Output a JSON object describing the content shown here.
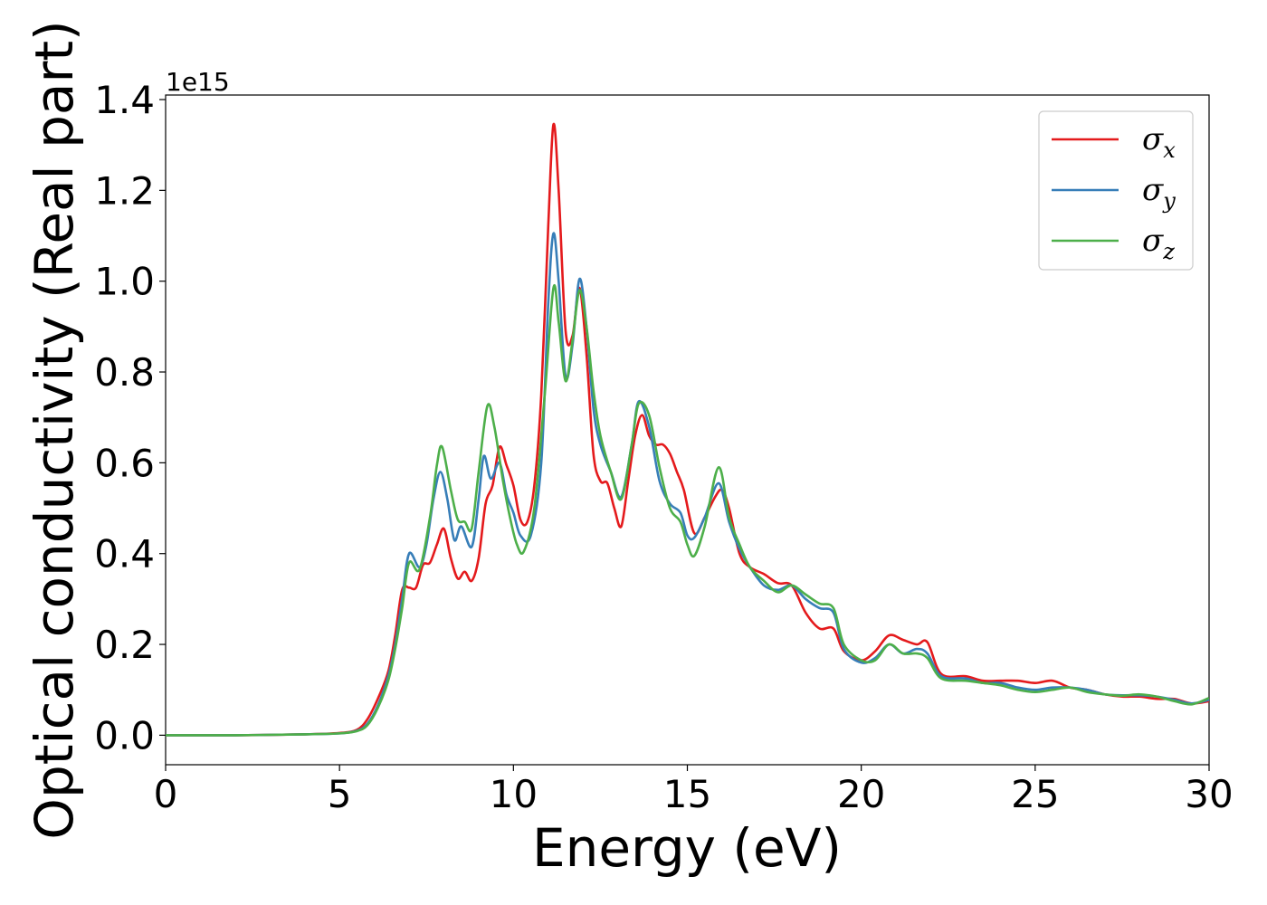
{
  "chart_data": {
    "type": "line",
    "title": "",
    "xlabel": "Energy (eV)",
    "ylabel": "Optical conductivity (Real part)",
    "y_offset_text": "1e15",
    "xlim": [
      0,
      30
    ],
    "ylim": [
      -0.065,
      1.41
    ],
    "x_ticks": [
      0,
      5,
      10,
      15,
      20,
      25,
      30
    ],
    "y_ticks": [
      0.0,
      0.2,
      0.4,
      0.6,
      0.8,
      1.0,
      1.2,
      1.4
    ],
    "x_tick_labels": [
      "0",
      "5",
      "10",
      "15",
      "20",
      "25",
      "30"
    ],
    "y_tick_labels": [
      "0.0",
      "0.2",
      "0.4",
      "0.6",
      "0.8",
      "1.0",
      "1.2",
      "1.4"
    ],
    "grid": false,
    "legend": {
      "position": "top-right",
      "entries": [
        {
          "symbol": "σ",
          "sub": "x",
          "color": "#e41a1c"
        },
        {
          "symbol": "σ",
          "sub": "y",
          "color": "#377eb8"
        },
        {
          "symbol": "σ",
          "sub": "z",
          "color": "#4daf4a"
        }
      ]
    },
    "series": [
      {
        "color": "#e41a1c",
        "points": [
          [
            0,
            0
          ],
          [
            2,
            0
          ],
          [
            4,
            0.002
          ],
          [
            5,
            0.005
          ],
          [
            5.5,
            0.012
          ],
          [
            5.8,
            0.035
          ],
          [
            6.1,
            0.08
          ],
          [
            6.4,
            0.14
          ],
          [
            6.6,
            0.22
          ],
          [
            6.8,
            0.32
          ],
          [
            7.0,
            0.325
          ],
          [
            7.2,
            0.325
          ],
          [
            7.4,
            0.375
          ],
          [
            7.6,
            0.38
          ],
          [
            7.8,
            0.42
          ],
          [
            8.0,
            0.455
          ],
          [
            8.2,
            0.39
          ],
          [
            8.4,
            0.345
          ],
          [
            8.6,
            0.36
          ],
          [
            8.8,
            0.34
          ],
          [
            9.0,
            0.39
          ],
          [
            9.2,
            0.51
          ],
          [
            9.4,
            0.55
          ],
          [
            9.6,
            0.635
          ],
          [
            9.8,
            0.595
          ],
          [
            10.0,
            0.55
          ],
          [
            10.2,
            0.475
          ],
          [
            10.4,
            0.47
          ],
          [
            10.6,
            0.55
          ],
          [
            10.8,
            0.75
          ],
          [
            11.0,
            1.12
          ],
          [
            11.15,
            1.345
          ],
          [
            11.3,
            1.2
          ],
          [
            11.5,
            0.89
          ],
          [
            11.7,
            0.88
          ],
          [
            11.9,
            0.985
          ],
          [
            12.1,
            0.84
          ],
          [
            12.3,
            0.62
          ],
          [
            12.5,
            0.56
          ],
          [
            12.7,
            0.555
          ],
          [
            12.9,
            0.5
          ],
          [
            13.1,
            0.46
          ],
          [
            13.3,
            0.56
          ],
          [
            13.5,
            0.66
          ],
          [
            13.7,
            0.705
          ],
          [
            13.9,
            0.66
          ],
          [
            14.1,
            0.64
          ],
          [
            14.3,
            0.64
          ],
          [
            14.5,
            0.62
          ],
          [
            14.7,
            0.58
          ],
          [
            14.9,
            0.54
          ],
          [
            15.2,
            0.445
          ],
          [
            15.5,
            0.48
          ],
          [
            15.8,
            0.525
          ],
          [
            16.0,
            0.54
          ],
          [
            16.2,
            0.5
          ],
          [
            16.5,
            0.4
          ],
          [
            16.8,
            0.37
          ],
          [
            17.2,
            0.355
          ],
          [
            17.6,
            0.335
          ],
          [
            18.0,
            0.33
          ],
          [
            18.4,
            0.27
          ],
          [
            18.8,
            0.235
          ],
          [
            19.2,
            0.235
          ],
          [
            19.5,
            0.185
          ],
          [
            20.0,
            0.165
          ],
          [
            20.4,
            0.185
          ],
          [
            20.8,
            0.22
          ],
          [
            21.2,
            0.21
          ],
          [
            21.6,
            0.2
          ],
          [
            21.9,
            0.205
          ],
          [
            22.3,
            0.135
          ],
          [
            23.0,
            0.13
          ],
          [
            23.5,
            0.12
          ],
          [
            24.0,
            0.12
          ],
          [
            24.5,
            0.12
          ],
          [
            25.0,
            0.115
          ],
          [
            25.5,
            0.12
          ],
          [
            26.0,
            0.105
          ],
          [
            26.5,
            0.1
          ],
          [
            27.0,
            0.09
          ],
          [
            27.5,
            0.085
          ],
          [
            28.0,
            0.085
          ],
          [
            28.5,
            0.08
          ],
          [
            29.0,
            0.08
          ],
          [
            29.5,
            0.07
          ],
          [
            30.0,
            0.075
          ]
        ]
      },
      {
        "color": "#377eb8",
        "points": [
          [
            0,
            0
          ],
          [
            2,
            0
          ],
          [
            4,
            0.002
          ],
          [
            5,
            0.004
          ],
          [
            5.5,
            0.01
          ],
          [
            5.8,
            0.025
          ],
          [
            6.1,
            0.065
          ],
          [
            6.4,
            0.13
          ],
          [
            6.6,
            0.2
          ],
          [
            6.8,
            0.3
          ],
          [
            7.0,
            0.4
          ],
          [
            7.3,
            0.37
          ],
          [
            7.5,
            0.42
          ],
          [
            7.7,
            0.52
          ],
          [
            7.9,
            0.58
          ],
          [
            8.1,
            0.52
          ],
          [
            8.3,
            0.43
          ],
          [
            8.5,
            0.46
          ],
          [
            8.8,
            0.415
          ],
          [
            9.0,
            0.52
          ],
          [
            9.15,
            0.615
          ],
          [
            9.35,
            0.565
          ],
          [
            9.6,
            0.6
          ],
          [
            9.8,
            0.53
          ],
          [
            10.0,
            0.49
          ],
          [
            10.2,
            0.44
          ],
          [
            10.5,
            0.44
          ],
          [
            10.8,
            0.6
          ],
          [
            11.0,
            0.95
          ],
          [
            11.15,
            1.105
          ],
          [
            11.3,
            1.0
          ],
          [
            11.5,
            0.79
          ],
          [
            11.7,
            0.86
          ],
          [
            11.9,
            1.005
          ],
          [
            12.1,
            0.9
          ],
          [
            12.3,
            0.72
          ],
          [
            12.5,
            0.64
          ],
          [
            12.8,
            0.58
          ],
          [
            13.1,
            0.525
          ],
          [
            13.4,
            0.64
          ],
          [
            13.6,
            0.735
          ],
          [
            13.9,
            0.68
          ],
          [
            14.2,
            0.56
          ],
          [
            14.5,
            0.51
          ],
          [
            14.8,
            0.49
          ],
          [
            15.0,
            0.44
          ],
          [
            15.2,
            0.435
          ],
          [
            15.5,
            0.48
          ],
          [
            15.9,
            0.555
          ],
          [
            16.2,
            0.47
          ],
          [
            16.5,
            0.41
          ],
          [
            16.8,
            0.37
          ],
          [
            17.2,
            0.33
          ],
          [
            17.6,
            0.32
          ],
          [
            18.0,
            0.33
          ],
          [
            18.4,
            0.3
          ],
          [
            18.8,
            0.28
          ],
          [
            19.2,
            0.27
          ],
          [
            19.5,
            0.19
          ],
          [
            20.0,
            0.16
          ],
          [
            20.4,
            0.17
          ],
          [
            20.8,
            0.2
          ],
          [
            21.2,
            0.18
          ],
          [
            21.6,
            0.19
          ],
          [
            21.9,
            0.18
          ],
          [
            22.3,
            0.13
          ],
          [
            23.0,
            0.125
          ],
          [
            23.5,
            0.115
          ],
          [
            24.0,
            0.115
          ],
          [
            24.5,
            0.105
          ],
          [
            25.0,
            0.1
          ],
          [
            25.5,
            0.105
          ],
          [
            26.0,
            0.105
          ],
          [
            26.5,
            0.1
          ],
          [
            27.0,
            0.09
          ],
          [
            27.5,
            0.088
          ],
          [
            28.0,
            0.088
          ],
          [
            28.5,
            0.085
          ],
          [
            29.0,
            0.078
          ],
          [
            29.5,
            0.07
          ],
          [
            30.0,
            0.078
          ]
        ]
      },
      {
        "color": "#4daf4a",
        "points": [
          [
            0,
            0
          ],
          [
            2,
            0
          ],
          [
            4,
            0.002
          ],
          [
            5,
            0.004
          ],
          [
            5.5,
            0.009
          ],
          [
            5.8,
            0.022
          ],
          [
            6.1,
            0.06
          ],
          [
            6.4,
            0.12
          ],
          [
            6.6,
            0.19
          ],
          [
            6.8,
            0.28
          ],
          [
            7.0,
            0.38
          ],
          [
            7.3,
            0.365
          ],
          [
            7.6,
            0.48
          ],
          [
            7.8,
            0.595
          ],
          [
            7.95,
            0.635
          ],
          [
            8.2,
            0.54
          ],
          [
            8.4,
            0.475
          ],
          [
            8.6,
            0.47
          ],
          [
            8.8,
            0.455
          ],
          [
            9.0,
            0.58
          ],
          [
            9.25,
            0.725
          ],
          [
            9.45,
            0.68
          ],
          [
            9.7,
            0.56
          ],
          [
            9.9,
            0.48
          ],
          [
            10.1,
            0.42
          ],
          [
            10.3,
            0.405
          ],
          [
            10.6,
            0.5
          ],
          [
            10.9,
            0.75
          ],
          [
            11.15,
            0.985
          ],
          [
            11.3,
            0.91
          ],
          [
            11.5,
            0.78
          ],
          [
            11.7,
            0.87
          ],
          [
            11.9,
            0.98
          ],
          [
            12.1,
            0.9
          ],
          [
            12.3,
            0.76
          ],
          [
            12.5,
            0.66
          ],
          [
            12.8,
            0.58
          ],
          [
            13.1,
            0.52
          ],
          [
            13.4,
            0.64
          ],
          [
            13.6,
            0.73
          ],
          [
            13.9,
            0.705
          ],
          [
            14.2,
            0.59
          ],
          [
            14.5,
            0.5
          ],
          [
            14.8,
            0.47
          ],
          [
            15.0,
            0.42
          ],
          [
            15.2,
            0.395
          ],
          [
            15.5,
            0.46
          ],
          [
            15.9,
            0.59
          ],
          [
            16.2,
            0.48
          ],
          [
            16.5,
            0.42
          ],
          [
            16.8,
            0.37
          ],
          [
            17.2,
            0.34
          ],
          [
            17.6,
            0.315
          ],
          [
            18.0,
            0.33
          ],
          [
            18.4,
            0.31
          ],
          [
            18.8,
            0.29
          ],
          [
            19.2,
            0.28
          ],
          [
            19.5,
            0.2
          ],
          [
            20.0,
            0.165
          ],
          [
            20.4,
            0.165
          ],
          [
            20.8,
            0.2
          ],
          [
            21.2,
            0.18
          ],
          [
            21.6,
            0.18
          ],
          [
            21.9,
            0.17
          ],
          [
            22.3,
            0.125
          ],
          [
            23.0,
            0.12
          ],
          [
            23.5,
            0.115
          ],
          [
            24.0,
            0.11
          ],
          [
            24.5,
            0.1
          ],
          [
            25.0,
            0.095
          ],
          [
            25.5,
            0.1
          ],
          [
            26.0,
            0.105
          ],
          [
            26.5,
            0.095
          ],
          [
            27.0,
            0.09
          ],
          [
            27.5,
            0.087
          ],
          [
            28.0,
            0.09
          ],
          [
            28.5,
            0.085
          ],
          [
            29.0,
            0.075
          ],
          [
            29.5,
            0.068
          ],
          [
            30.0,
            0.082
          ]
        ]
      }
    ]
  }
}
